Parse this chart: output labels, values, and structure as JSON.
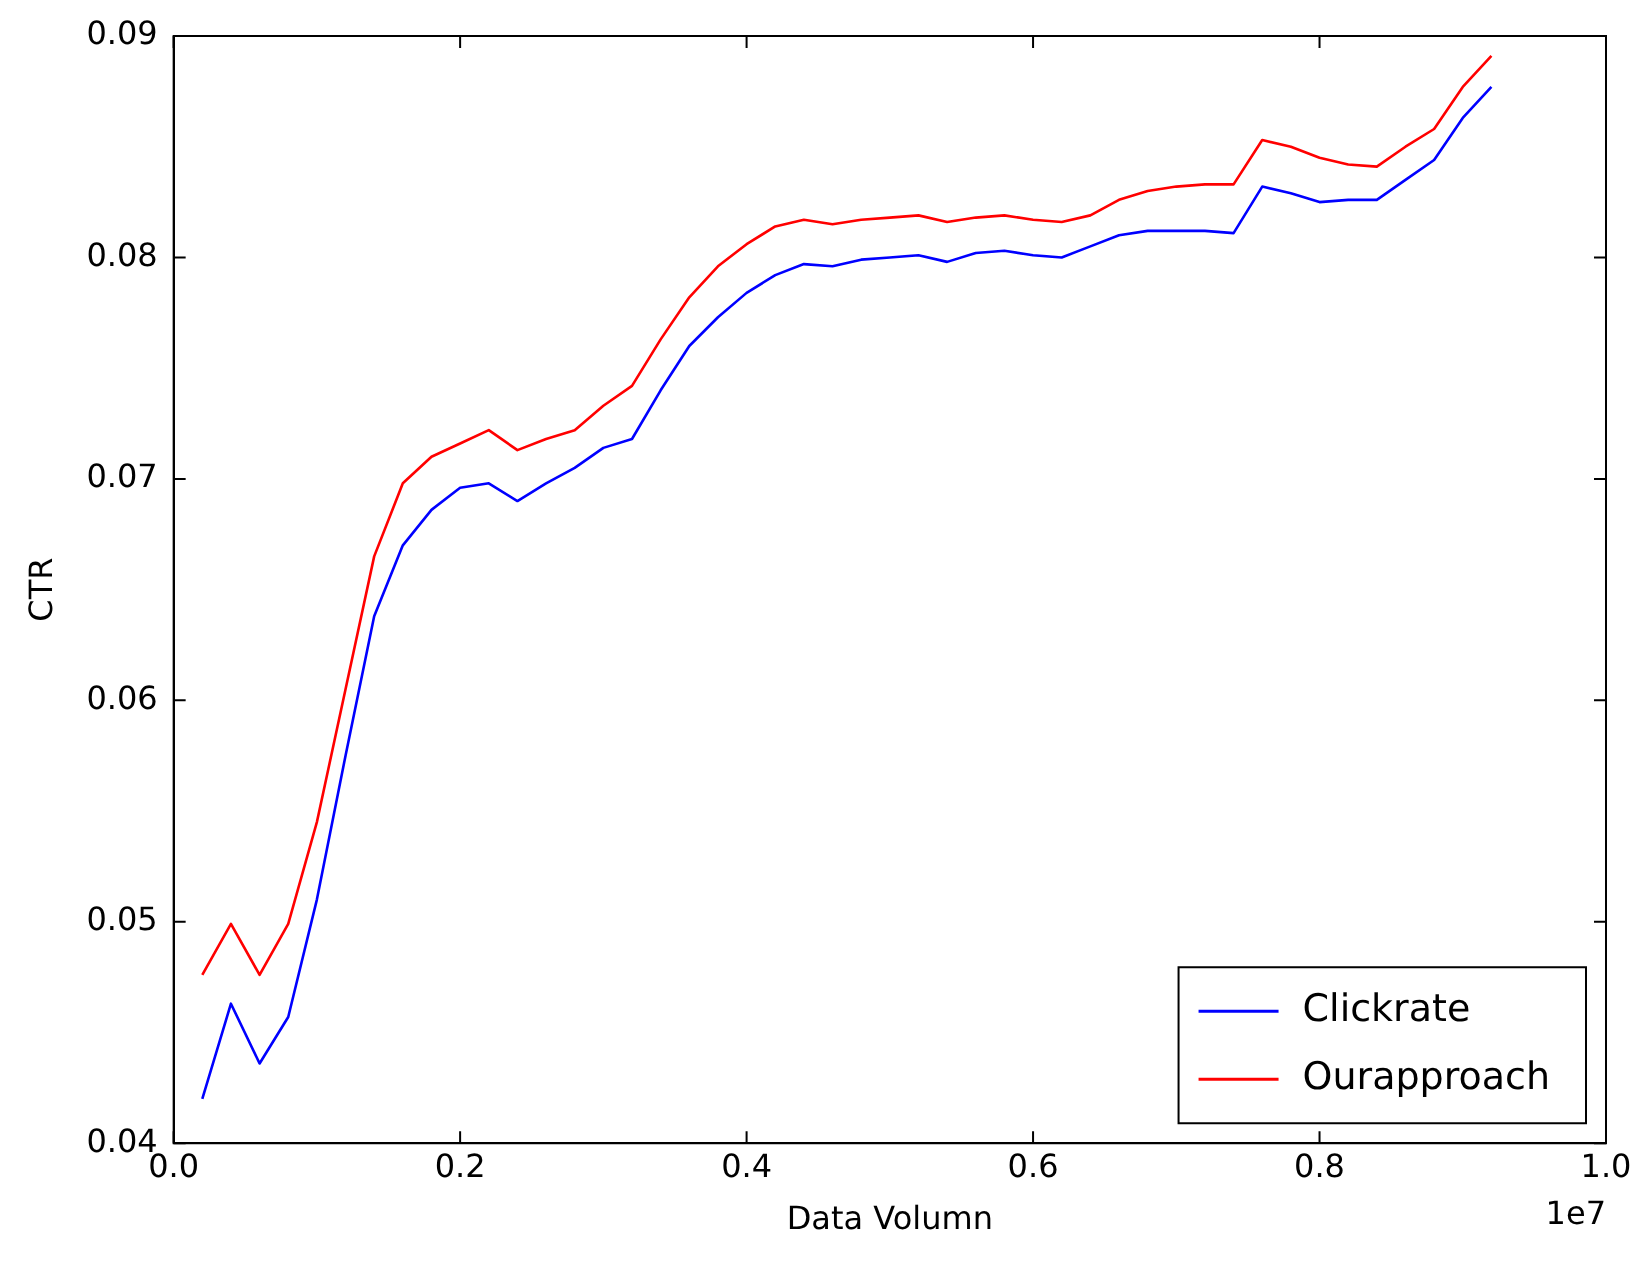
{
  "chart_data": {
    "type": "line",
    "xlabel": "Data Volumn",
    "ylabel": "CTR",
    "x": [
      0.02,
      0.04,
      0.06,
      0.08,
      0.1,
      0.12,
      0.14,
      0.16,
      0.18,
      0.2,
      0.22,
      0.24,
      0.26,
      0.28,
      0.3,
      0.32,
      0.34,
      0.36,
      0.38,
      0.4,
      0.42,
      0.44,
      0.46,
      0.48,
      0.5,
      0.52,
      0.54,
      0.56,
      0.58,
      0.6,
      0.62,
      0.64,
      0.66,
      0.68,
      0.7,
      0.72,
      0.74,
      0.76,
      0.78,
      0.8,
      0.82,
      0.84,
      0.86,
      0.88,
      0.9,
      0.92
    ],
    "series": [
      {
        "name": "Clickrate",
        "color": "#0000ff",
        "values": [
          0.042,
          0.0463,
          0.0436,
          0.0457,
          0.051,
          0.0575,
          0.0638,
          0.067,
          0.0686,
          0.0696,
          0.0698,
          0.069,
          0.0698,
          0.0705,
          0.0714,
          0.0718,
          0.074,
          0.076,
          0.0773,
          0.0784,
          0.0792,
          0.0797,
          0.0796,
          0.0799,
          0.08,
          0.0801,
          0.0798,
          0.0802,
          0.0803,
          0.0801,
          0.08,
          0.0805,
          0.081,
          0.0812,
          0.0812,
          0.0812,
          0.0811,
          0.0832,
          0.0829,
          0.0825,
          0.0826,
          0.0826,
          0.0835,
          0.0844,
          0.0863,
          0.0877
        ]
      },
      {
        "name": "Ourapproach",
        "color": "#ff0000",
        "values": [
          0.0476,
          0.0499,
          0.0476,
          0.0499,
          0.0545,
          0.0605,
          0.0665,
          0.0698,
          0.071,
          0.0716,
          0.0722,
          0.0713,
          0.0718,
          0.0722,
          0.0733,
          0.0742,
          0.0763,
          0.0782,
          0.0796,
          0.0806,
          0.0814,
          0.0817,
          0.0815,
          0.0817,
          0.0818,
          0.0819,
          0.0816,
          0.0818,
          0.0819,
          0.0817,
          0.0816,
          0.0819,
          0.0826,
          0.083,
          0.0832,
          0.0833,
          0.0833,
          0.0853,
          0.085,
          0.0845,
          0.0842,
          0.0841,
          0.085,
          0.0858,
          0.0877,
          0.0891
        ]
      }
    ],
    "xlim": [
      0,
      1
    ],
    "xticks": [
      {
        "value": 0,
        "label": "0.0"
      },
      0.2,
      0.4,
      0.6,
      0.8,
      {
        "value": 1,
        "label": "1.0"
      }
    ],
    "ylim": [
      0.04,
      0.09
    ],
    "yticks": [
      0.04,
      0.05,
      0.06,
      0.07,
      0.08,
      0.09
    ],
    "annotations": [
      "1e7"
    ],
    "grid": false,
    "legend": "bottom right",
    "marker": "none",
    "line_style": "solid"
  }
}
